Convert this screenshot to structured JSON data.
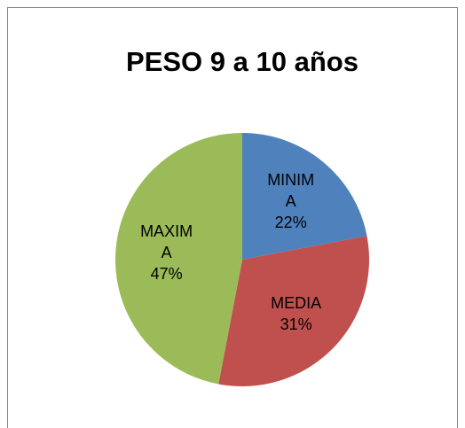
{
  "chart_data": {
    "type": "pie",
    "title": "PESO 9 a 10 años",
    "categories": [
      "MINIMA",
      "MEDIA",
      "MAXIMA"
    ],
    "values": [
      22,
      31,
      47
    ],
    "value_labels": [
      "22%",
      "31%",
      "47%"
    ],
    "colors": [
      "#4f81bd",
      "#c0504d",
      "#9bbb59"
    ]
  }
}
